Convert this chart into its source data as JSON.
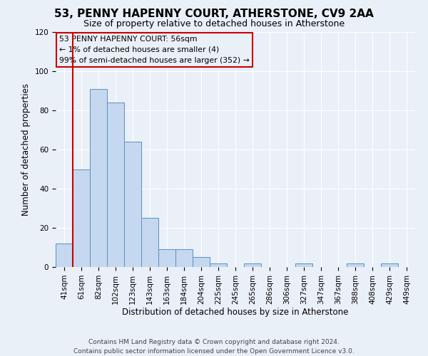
{
  "title": "53, PENNY HAPENNY COURT, ATHERSTONE, CV9 2AA",
  "subtitle": "Size of property relative to detached houses in Atherstone",
  "xlabel": "Distribution of detached houses by size in Atherstone",
  "ylabel": "Number of detached properties",
  "bin_labels": [
    "41sqm",
    "61sqm",
    "82sqm",
    "102sqm",
    "123sqm",
    "143sqm",
    "163sqm",
    "184sqm",
    "204sqm",
    "225sqm",
    "245sqm",
    "265sqm",
    "286sqm",
    "306sqm",
    "327sqm",
    "347sqm",
    "367sqm",
    "388sqm",
    "408sqm",
    "429sqm",
    "449sqm"
  ],
  "bar_heights": [
    12,
    50,
    91,
    84,
    64,
    25,
    9,
    9,
    5,
    2,
    0,
    2,
    0,
    0,
    2,
    0,
    0,
    2,
    0,
    2,
    0
  ],
  "bar_color": "#c5d8f0",
  "bar_edge_color": "#5a8fc0",
  "marker_color": "#cc0000",
  "ylim": [
    0,
    120
  ],
  "yticks": [
    0,
    20,
    40,
    60,
    80,
    100,
    120
  ],
  "annotation_line1": "53 PENNY HAPENNY COURT: 56sqm",
  "annotation_line2": "← 1% of detached houses are smaller (4)",
  "annotation_line3": "99% of semi-detached houses are larger (352) →",
  "annotation_box_edge": "#cc0000",
  "footer_line1": "Contains HM Land Registry data © Crown copyright and database right 2024.",
  "footer_line2": "Contains public sector information licensed under the Open Government Licence v3.0.",
  "background_color": "#eaf0f8",
  "grid_color": "#ffffff",
  "title_fontsize": 11,
  "subtitle_fontsize": 9,
  "axis_label_fontsize": 8.5,
  "tick_fontsize": 7.5,
  "annotation_fontsize": 7.8,
  "footer_fontsize": 6.5
}
